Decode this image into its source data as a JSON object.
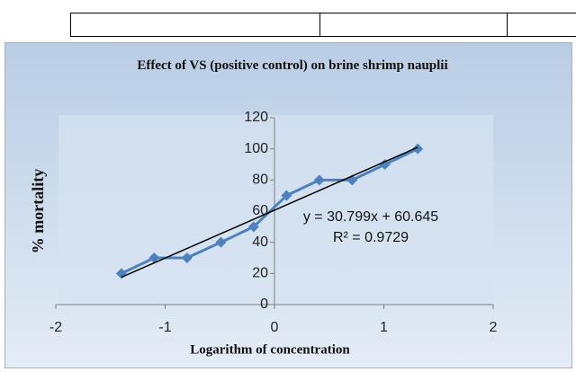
{
  "chart_data": {
    "type": "scatter",
    "title": "Effect of VS (positive control) on brine shrimp nauplii",
    "xlabel": "Logarithm of concentration",
    "ylabel": "% mortality",
    "series": [
      {
        "color": "#4f81bd",
        "x": [
          -1.4,
          -1.1,
          -0.8,
          -0.49,
          -0.19,
          0.11,
          0.41,
          0.71,
          1.01,
          1.31
        ],
        "values": [
          20,
          30,
          30,
          40,
          50,
          70,
          80,
          80,
          90,
          100
        ]
      }
    ],
    "trendline": {
      "slope": 30.799,
      "intercept": 60.645,
      "color": "#000000"
    },
    "annotations": [
      "y = 30.799x + 60.645",
      "R² = 0.9729"
    ],
    "xlim": [
      -2,
      2
    ],
    "xticks": [
      -2,
      -1,
      0,
      1,
      2
    ],
    "ylim": [
      0,
      120
    ],
    "yticks": [
      0,
      20,
      40,
      60,
      80,
      100,
      120
    ]
  }
}
